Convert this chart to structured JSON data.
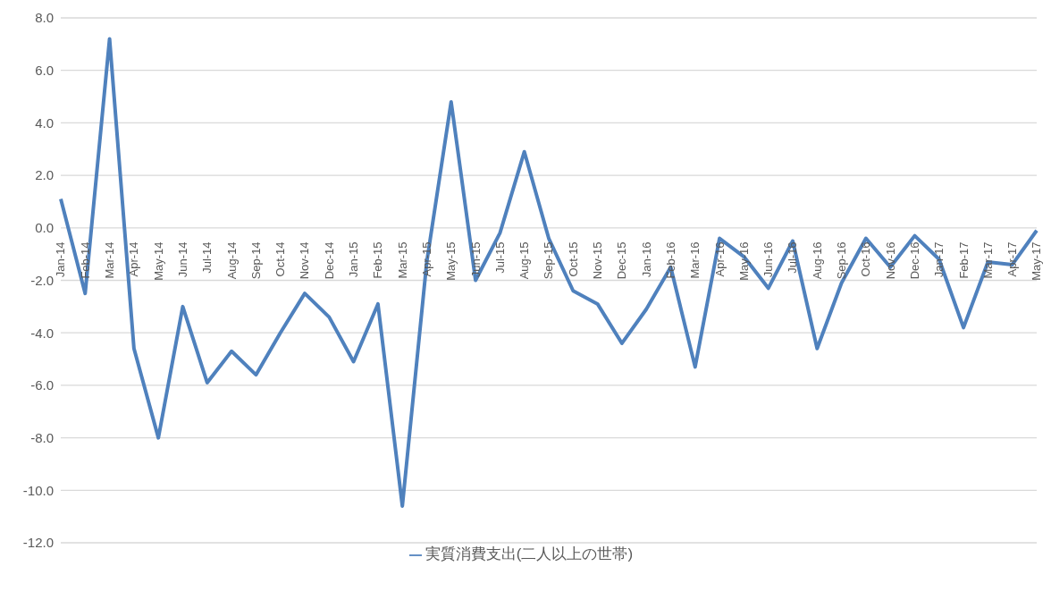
{
  "chart_data": {
    "type": "line",
    "categories": [
      "Jan-14",
      "Feb-14",
      "Mar-14",
      "Apr-14",
      "May-14",
      "Jun-14",
      "Jul-14",
      "Aug-14",
      "Sep-14",
      "Oct-14",
      "Nov-14",
      "Dec-14",
      "Jan-15",
      "Feb-15",
      "Mar-15",
      "Apr-15",
      "May-15",
      "Jun-15",
      "Jul-15",
      "Aug-15",
      "Sep-15",
      "Oct-15",
      "Nov-15",
      "Dec-15",
      "Jan-16",
      "Feb-16",
      "Mar-16",
      "Apr-16",
      "May-16",
      "Jun-16",
      "Jul-16",
      "Aug-16",
      "Sep-16",
      "Oct-16",
      "Nov-16",
      "Dec-16",
      "Jan-17",
      "Feb-17",
      "Mar-17",
      "Apr-17",
      "May-17"
    ],
    "series": [
      {
        "name": "実質消費支出(二人以上の世帯)",
        "color": "#4f81bd",
        "values": [
          1.1,
          -2.5,
          7.2,
          -4.6,
          -8.0,
          -3.0,
          -5.9,
          -4.7,
          -5.6,
          -4.0,
          -2.5,
          -3.4,
          -5.1,
          -2.9,
          -10.6,
          -1.3,
          4.8,
          -2.0,
          -0.2,
          2.9,
          -0.4,
          -2.4,
          -2.9,
          -4.4,
          -3.1,
          -1.5,
          -5.3,
          -0.4,
          -1.1,
          -2.3,
          -0.5,
          -4.6,
          -2.1,
          -0.4,
          -1.5,
          -0.3,
          -1.2,
          -3.8,
          -1.3,
          -1.4,
          -0.1
        ]
      }
    ],
    "ylim": [
      -12,
      8
    ],
    "yticks": [
      {
        "value": -12,
        "label": "-12.0"
      },
      {
        "value": -10,
        "label": "-10.0"
      },
      {
        "value": -8,
        "label": "-8.0"
      },
      {
        "value": -6,
        "label": "-6.0"
      },
      {
        "value": -4,
        "label": "-4.0"
      },
      {
        "value": -2,
        "label": "-2.0"
      },
      {
        "value": 0,
        "label": "0.0"
      },
      {
        "value": 2,
        "label": "2.0"
      },
      {
        "value": 4,
        "label": "4.0"
      },
      {
        "value": 6,
        "label": "6.0"
      },
      {
        "value": 8,
        "label": "8.0"
      }
    ],
    "grid": "y",
    "legend": "bottom",
    "marker": "none",
    "line_style": "solid"
  }
}
